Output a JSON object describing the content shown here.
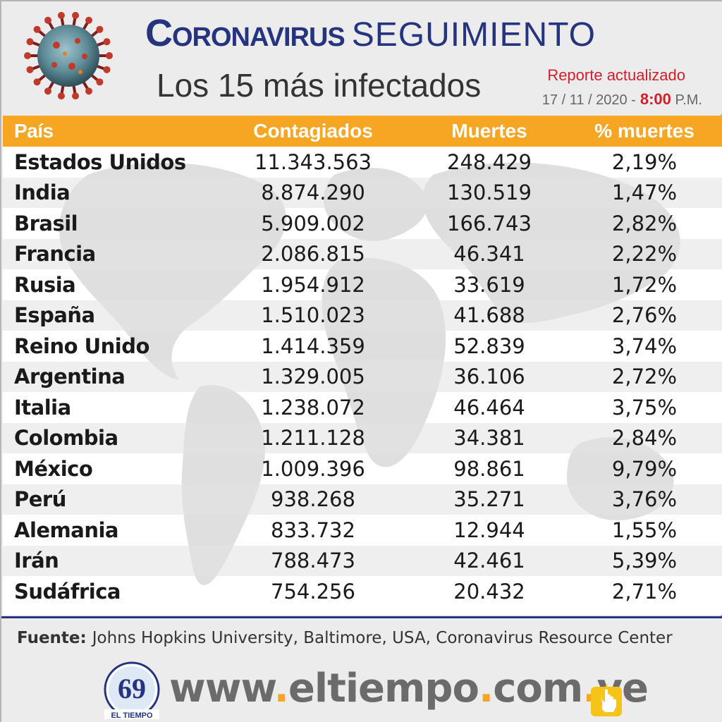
{
  "header": {
    "title_main": "Coronavirus",
    "title_secondary": "SEGUIMIENTO",
    "subtitle": "Los 15 más infectados",
    "report_label": "Reporte actualizado",
    "report_date": "17 / 11 / 2020 -",
    "report_time": "8:00",
    "report_ampm": "P.M."
  },
  "table": {
    "headers": [
      "País",
      "Contagiados",
      "Muertes",
      "% muertes"
    ],
    "rows": [
      [
        "Estados Unidos",
        "11.343.563",
        "248.429",
        "2,19%"
      ],
      [
        "India",
        "8.874.290",
        "130.519",
        "1,47%"
      ],
      [
        "Brasil",
        "5.909.002",
        "166.743",
        "2,82%"
      ],
      [
        "Francia",
        "2.086.815",
        "46.341",
        "2,22%"
      ],
      [
        "Rusia",
        "1.954.912",
        "33.619",
        "1,72%"
      ],
      [
        "España",
        "1.510.023",
        "41.688",
        "2,76%"
      ],
      [
        "Reino Unido",
        "1.414.359",
        "52.839",
        "3,74%"
      ],
      [
        "Argentina",
        "1.329.005",
        "36.106",
        "2,72%"
      ],
      [
        "Italia",
        "1.238.072",
        "46.464",
        "3,75%"
      ],
      [
        "Colombia",
        "1.211.128",
        "34.381",
        "2,84%"
      ],
      [
        "México",
        "1.009.396",
        "98.861",
        "9,79%"
      ],
      [
        "Perú",
        "938.268",
        "35.271",
        "3,76%"
      ],
      [
        "Alemania",
        "833.732",
        "12.944",
        "1,55%"
      ],
      [
        "Irán",
        "788.473",
        "42.461",
        "5,39%"
      ],
      [
        "Sudáfrica",
        "754.256",
        "20.432",
        "2,71%"
      ]
    ]
  },
  "footer": {
    "source_label": "Fuente:",
    "source_text": "Johns Hopkins University, Baltimore, USA, Coronavirus Resource Center",
    "site_parts": [
      "www",
      ".",
      "eltiempo",
      ".",
      "com",
      ".",
      "ve"
    ],
    "logo_text": "EL TIEMPO",
    "logo_number": "69"
  },
  "colors": {
    "title_blue": "#26347f",
    "header_orange": "#f6a623",
    "accent_red": "#d01f2a"
  },
  "icons": [
    "coronavirus-icon",
    "world-map-icon",
    "newspaper-logo-icon",
    "click-hand-icon"
  ]
}
